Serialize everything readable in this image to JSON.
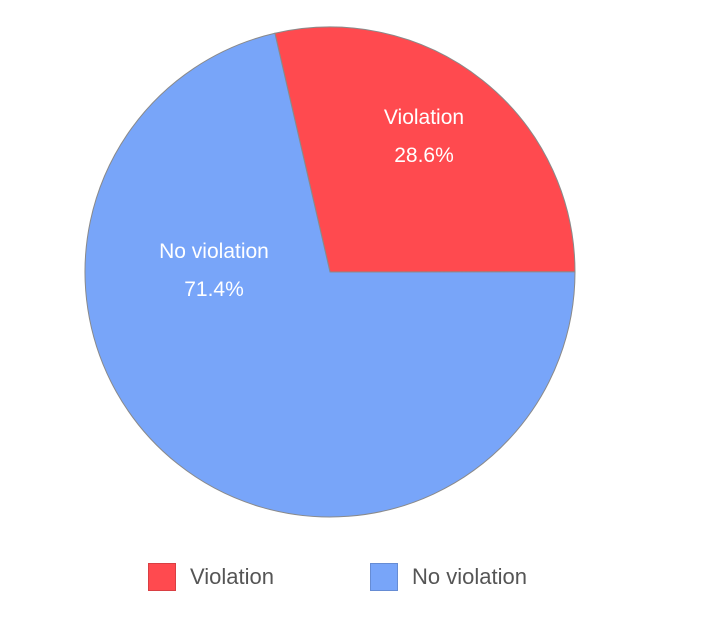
{
  "chart_data": {
    "type": "pie",
    "categories": [
      "Violation",
      "No violation"
    ],
    "values": [
      28.6,
      71.4
    ],
    "value_labels": [
      "28.6%",
      "71.4%"
    ],
    "colors": [
      "#ff4a4f",
      "#78a5f9"
    ],
    "start_angle_deg": -13,
    "legend": {
      "placement": "bottom",
      "items": [
        {
          "label": "Violation",
          "color": "#ff4a4f"
        },
        {
          "label": "No violation",
          "color": "#78a5f9"
        }
      ]
    }
  }
}
